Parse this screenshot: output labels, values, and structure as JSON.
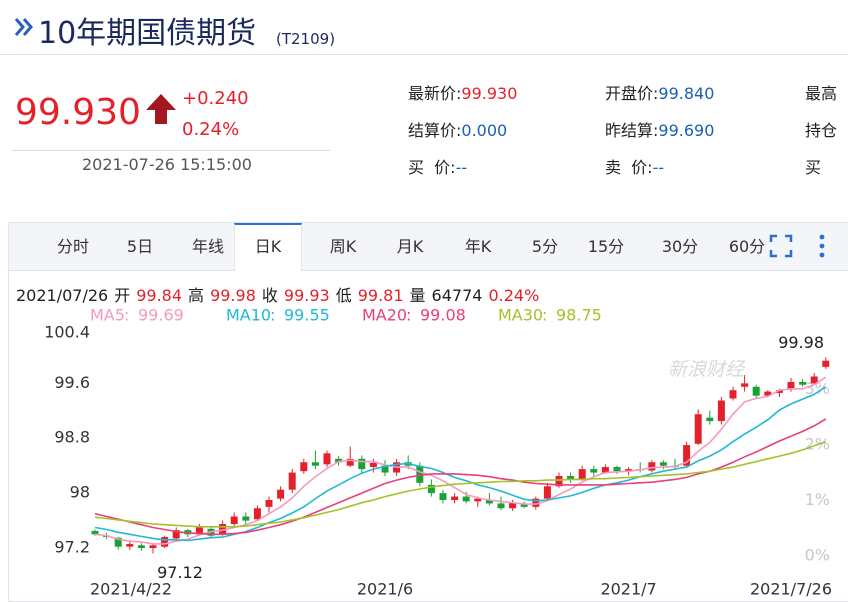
{
  "header": {
    "title": "10年期国债期货",
    "code": "(T2109)"
  },
  "quote": {
    "price": "99.930",
    "change": "+0.240",
    "change_pct": "0.24%",
    "time": "2021-07-26 15:15:00"
  },
  "info_grid": [
    [
      [
        "最新价:",
        "99.930"
      ],
      [
        "开盘价:",
        "99.840"
      ],
      [
        "最高",
        null
      ]
    ],
    [
      [
        "结算价:",
        "0.000"
      ],
      [
        "昨结算:",
        "99.690"
      ],
      [
        "持仓",
        null
      ]
    ],
    [
      [
        "买  价:",
        "--"
      ],
      [
        "卖  价:",
        "--"
      ],
      [
        "买",
        null
      ]
    ]
  ],
  "tabs": [
    "分时",
    "5日",
    "年线",
    "日K",
    "周K",
    "月K",
    "年K",
    "5分",
    "15分",
    "30分",
    "60分"
  ],
  "selected_tab": "日K",
  "info_line": [
    {
      "text": "2021/07/26",
      "color": "#222"
    },
    {
      "text": "开",
      "color": "#222"
    },
    {
      "text": "99.84",
      "color": "#e4212b"
    },
    {
      "text": "高",
      "color": "#222"
    },
    {
      "text": "99.98",
      "color": "#e4212b"
    },
    {
      "text": "收",
      "color": "#222"
    },
    {
      "text": "99.93",
      "color": "#e4212b"
    },
    {
      "text": "低",
      "color": "#222"
    },
    {
      "text": "99.81",
      "color": "#e4212b"
    },
    {
      "text": "量",
      "color": "#222"
    },
    {
      "text": "64774",
      "color": "#222"
    },
    {
      "text": "0.24%",
      "color": "#e4212b"
    }
  ],
  "chart_data": {
    "type": "candlestick",
    "watermark": "新浪财经",
    "up_color": "#e4212b",
    "down_color": "#1aa133",
    "categories": [
      "2021/4/22",
      null,
      null,
      null,
      null,
      null,
      null,
      null,
      null,
      null,
      null,
      null,
      null,
      null,
      null,
      null,
      null,
      null,
      null,
      null,
      null,
      null,
      null,
      null,
      null,
      "2021/6",
      null,
      null,
      null,
      null,
      null,
      null,
      null,
      null,
      null,
      null,
      null,
      null,
      null,
      null,
      null,
      null,
      null,
      null,
      null,
      null,
      "2021/7",
      null,
      null,
      null,
      null,
      null,
      null,
      null,
      null,
      null,
      null,
      null,
      null,
      null,
      null,
      null,
      null,
      "2021/7/26"
    ],
    "open": [
      97.45,
      97.38,
      97.35,
      97.22,
      97.24,
      97.2,
      97.22,
      97.34,
      97.46,
      97.4,
      97.48,
      97.4,
      97.55,
      97.66,
      97.62,
      97.8,
      97.92,
      98.05,
      98.32,
      98.45,
      98.42,
      98.5,
      98.4,
      98.5,
      98.38,
      98.4,
      98.3,
      98.45,
      98.4,
      98.12,
      98.0,
      97.9,
      97.95,
      97.88,
      97.9,
      97.85,
      97.78,
      97.84,
      97.8,
      97.92,
      98.1,
      98.25,
      98.2,
      98.35,
      98.3,
      98.38,
      98.32,
      98.35,
      98.33,
      98.45,
      98.4,
      98.4,
      98.72,
      99.1,
      99.05,
      99.38,
      99.55,
      99.55,
      99.42,
      99.46,
      99.52,
      99.62,
      99.6,
      99.84
    ],
    "high": [
      97.47,
      97.42,
      97.36,
      97.3,
      97.27,
      97.26,
      97.38,
      97.5,
      97.48,
      97.55,
      97.52,
      97.6,
      97.72,
      97.72,
      97.82,
      97.95,
      98.1,
      98.35,
      98.5,
      98.62,
      98.62,
      98.54,
      98.68,
      98.55,
      98.5,
      98.48,
      98.5,
      98.55,
      98.45,
      98.2,
      98.05,
      98.0,
      98.02,
      97.95,
      98.0,
      97.95,
      97.9,
      97.88,
      97.95,
      98.15,
      98.3,
      98.3,
      98.4,
      98.4,
      98.42,
      98.4,
      98.38,
      98.45,
      98.48,
      98.48,
      98.5,
      98.75,
      99.22,
      99.2,
      99.4,
      99.55,
      99.72,
      99.58,
      99.5,
      99.52,
      99.68,
      99.66,
      99.75,
      99.98
    ],
    "low": [
      97.38,
      97.33,
      97.18,
      97.17,
      97.16,
      97.12,
      97.2,
      97.32,
      97.36,
      97.38,
      97.36,
      97.38,
      97.5,
      97.55,
      97.6,
      97.72,
      97.88,
      98.0,
      98.28,
      98.35,
      98.38,
      98.4,
      98.38,
      98.3,
      98.3,
      98.25,
      98.25,
      98.35,
      98.1,
      97.95,
      97.85,
      97.85,
      97.85,
      97.8,
      97.82,
      97.75,
      97.74,
      97.78,
      97.76,
      97.9,
      98.08,
      98.15,
      98.18,
      98.25,
      98.28,
      98.28,
      98.26,
      98.3,
      98.3,
      98.35,
      98.36,
      98.38,
      98.7,
      99.0,
      99.0,
      99.35,
      99.48,
      99.38,
      99.4,
      99.4,
      99.48,
      99.55,
      99.58,
      99.81
    ],
    "close": [
      97.4,
      97.36,
      97.22,
      97.26,
      97.2,
      97.24,
      97.36,
      97.46,
      97.4,
      97.5,
      97.38,
      97.55,
      97.66,
      97.6,
      97.78,
      97.9,
      98.05,
      98.3,
      98.45,
      98.4,
      98.58,
      98.45,
      98.5,
      98.35,
      98.44,
      98.3,
      98.45,
      98.4,
      98.15,
      98.0,
      97.9,
      97.95,
      97.88,
      97.92,
      97.85,
      97.78,
      97.86,
      97.8,
      97.92,
      98.1,
      98.25,
      98.2,
      98.35,
      98.3,
      98.38,
      98.32,
      98.35,
      98.33,
      98.45,
      98.4,
      98.38,
      98.7,
      99.15,
      99.05,
      99.35,
      99.5,
      99.6,
      99.42,
      99.48,
      99.5,
      99.62,
      99.58,
      99.7,
      99.93
    ],
    "series": [
      {
        "name": "MA5",
        "legend_value": "99.69",
        "color": "#f49ac1",
        "values": [
          97.4,
          97.38,
          97.33,
          97.3,
          97.29,
          97.26,
          97.26,
          97.3,
          97.33,
          97.39,
          97.44,
          97.46,
          97.5,
          97.54,
          97.6,
          97.7,
          97.8,
          97.93,
          98.1,
          98.24,
          98.36,
          98.46,
          98.48,
          98.46,
          98.46,
          98.41,
          98.38,
          98.38,
          98.31,
          98.26,
          98.18,
          98.08,
          97.98,
          97.93,
          97.9,
          97.88,
          97.86,
          97.84,
          97.84,
          97.89,
          97.98,
          98.06,
          98.16,
          98.24,
          98.3,
          98.31,
          98.32,
          98.34,
          98.37,
          98.38,
          98.39,
          98.45,
          98.61,
          98.74,
          98.93,
          99.15,
          99.33,
          99.38,
          99.41,
          99.5,
          99.52,
          99.52,
          99.58,
          99.69
        ]
      },
      {
        "name": "MA10",
        "legend_value": "99.55",
        "color": "#22b8d8",
        "values": [
          97.5,
          97.47,
          97.43,
          97.4,
          97.37,
          97.34,
          97.32,
          97.32,
          97.31,
          97.33,
          97.35,
          97.36,
          97.4,
          97.44,
          97.5,
          97.57,
          97.63,
          97.71,
          97.8,
          97.92,
          98.03,
          98.12,
          98.21,
          98.29,
          98.35,
          98.39,
          98.42,
          98.43,
          98.39,
          98.36,
          98.3,
          98.23,
          98.18,
          98.12,
          98.08,
          98.03,
          97.97,
          97.91,
          97.89,
          97.9,
          97.93,
          97.96,
          98.01,
          98.07,
          98.12,
          98.15,
          98.19,
          98.24,
          98.28,
          98.32,
          98.35,
          98.38,
          98.47,
          98.54,
          98.63,
          98.75,
          98.86,
          98.96,
          99.07,
          99.21,
          99.3,
          99.37,
          99.44,
          99.55
        ]
      },
      {
        "name": "MA20",
        "legend_value": "99.08",
        "color": "#e8407a",
        "values": [
          97.7,
          97.66,
          97.62,
          97.58,
          97.54,
          97.5,
          97.47,
          97.44,
          97.42,
          97.41,
          97.4,
          97.4,
          97.41,
          97.43,
          97.46,
          97.5,
          97.54,
          97.59,
          97.65,
          97.72,
          97.79,
          97.86,
          97.93,
          98.0,
          98.07,
          98.14,
          98.19,
          98.23,
          98.26,
          98.28,
          98.28,
          98.28,
          98.27,
          98.26,
          98.24,
          98.21,
          98.19,
          98.16,
          98.14,
          98.13,
          98.12,
          98.12,
          98.12,
          98.12,
          98.12,
          98.13,
          98.14,
          98.15,
          98.16,
          98.18,
          98.2,
          98.23,
          98.28,
          98.32,
          98.38,
          98.45,
          98.53,
          98.6,
          98.68,
          98.76,
          98.83,
          98.9,
          98.98,
          99.08
        ]
      },
      {
        "name": "MA30",
        "legend_value": "98.75",
        "color": "#a4c22c",
        "values": [
          97.65,
          97.63,
          97.61,
          97.59,
          97.57,
          97.55,
          97.54,
          97.53,
          97.52,
          97.51,
          97.51,
          97.51,
          97.51,
          97.52,
          97.54,
          97.56,
          97.58,
          97.61,
          97.64,
          97.68,
          97.72,
          97.76,
          97.81,
          97.86,
          97.9,
          97.95,
          97.99,
          98.03,
          98.06,
          98.09,
          98.11,
          98.13,
          98.14,
          98.15,
          98.16,
          98.17,
          98.17,
          98.18,
          98.18,
          98.19,
          98.19,
          98.2,
          98.2,
          98.21,
          98.21,
          98.22,
          98.23,
          98.24,
          98.25,
          98.26,
          98.27,
          98.28,
          98.3,
          98.32,
          98.35,
          98.38,
          98.42,
          98.46,
          98.5,
          98.54,
          98.58,
          98.63,
          98.69,
          98.75
        ]
      }
    ],
    "high_label": 99.98,
    "low_label": 97.12,
    "ylim": [
      96.88,
      100.45
    ],
    "yticks": [
      97.2,
      98,
      98.8,
      99.6,
      100.4
    ],
    "y2lim": [
      -0.25,
      4.16
    ],
    "y2ticks": [
      {
        "value": 0,
        "label": "0%"
      },
      {
        "value": 1,
        "label": "1%"
      },
      {
        "value": 2,
        "label": "2%"
      },
      {
        "value": 3,
        "label": "3%"
      }
    ]
  }
}
